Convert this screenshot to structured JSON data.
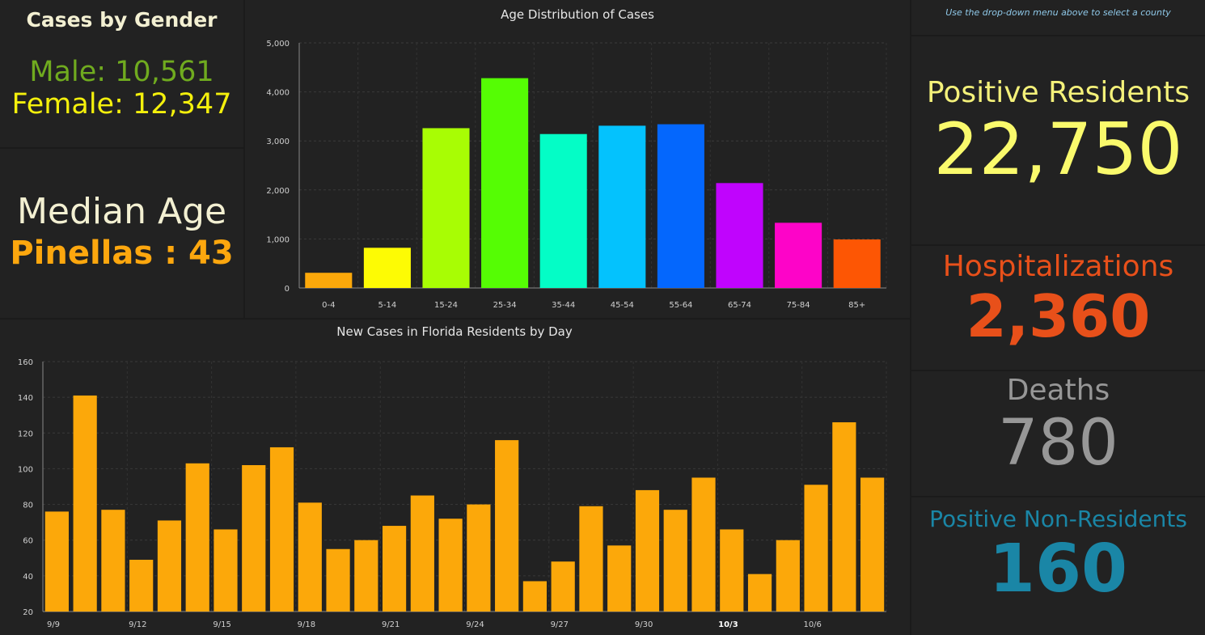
{
  "gender": {
    "title": "Cases by Gender",
    "male": "Male: 10,561",
    "female": "Female: 12,347"
  },
  "median_age": {
    "title": "Median Age",
    "value": "Pinellas : 43"
  },
  "note": "Use the drop-down menu above to select a county",
  "positive_residents": {
    "label": "Positive Residents",
    "value": "22,750"
  },
  "hospitalizations": {
    "label": "Hospitalizations",
    "value": "2,360"
  },
  "deaths": {
    "label": "Deaths",
    "value": "780"
  },
  "positive_non_residents": {
    "label": "Positive Non-Residents",
    "value": "160"
  },
  "colors": {
    "male": "#70ab1f",
    "female": "#f4f00c",
    "median": "#fda70e",
    "positive": "#fafa6c",
    "hospitalizations": "#e8501a",
    "deaths": "#979797",
    "non_residents": "#1a86a6",
    "daily_bar": "#fca80a"
  },
  "chart_data": [
    {
      "type": "bar",
      "title": "Age Distribution of Cases",
      "categories": [
        "0-4",
        "5-14",
        "15-24",
        "25-34",
        "35-44",
        "45-54",
        "55-64",
        "65-74",
        "75-84",
        "85+"
      ],
      "values": [
        310,
        820,
        3260,
        4280,
        3140,
        3310,
        3340,
        2140,
        1330,
        990
      ],
      "colors": [
        "#fca80a",
        "#fdfb04",
        "#a8fd04",
        "#55fd04",
        "#04fdc6",
        "#04c2fd",
        "#0467fd",
        "#c004fd",
        "#fd04c8",
        "#fd5604"
      ],
      "ylim": [
        0,
        5000
      ],
      "yticks": [
        "0",
        "1,000",
        "2,000",
        "3,000",
        "4,000",
        "5,000"
      ],
      "grid": true
    },
    {
      "type": "bar",
      "title": "New Cases in Florida Residents by Day",
      "values": [
        76,
        141,
        77,
        49,
        71,
        103,
        66,
        102,
        112,
        81,
        55,
        60,
        68,
        85,
        72,
        80,
        116,
        37,
        48,
        79,
        57,
        88,
        77,
        95,
        66,
        41,
        60,
        91,
        126,
        95
      ],
      "xtick_labels": [
        "9/9",
        "9/12",
        "9/15",
        "9/18",
        "9/21",
        "9/24",
        "9/27",
        "9/30",
        "10/3",
        "10/6"
      ],
      "xtick_every": 3,
      "ylim": [
        20,
        160
      ],
      "yticks": [
        "20",
        "40",
        "60",
        "80",
        "100",
        "120",
        "140",
        "160"
      ],
      "grid": true
    }
  ]
}
